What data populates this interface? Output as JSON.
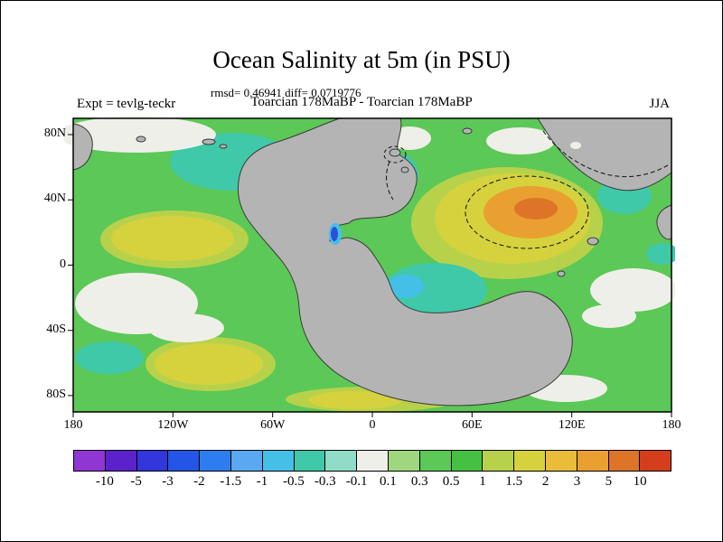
{
  "title": "Ocean Salinity at 5m (in PSU)",
  "stats_line": "rmsd= 0.46941 diff= 0.0719776",
  "header": {
    "left": "Expt = tevlg-teckr",
    "center": "Toarcian 178MaBP - Toarcian 178MaBP",
    "right": "JJA"
  },
  "axes": {
    "lat_labels": [
      "80N",
      "40N",
      "0",
      "40S",
      "80S"
    ],
    "lon_labels": [
      "180",
      "120W",
      "60W",
      "0",
      "60E",
      "120E",
      "180"
    ]
  },
  "colorbar": {
    "levels": [
      "-10",
      "-5",
      "-3",
      "-2",
      "-1.5",
      "-1",
      "-0.5",
      "-0.3",
      "-0.1",
      "0.1",
      "0.3",
      "0.5",
      "1",
      "1.5",
      "2",
      "3",
      "5",
      "10"
    ],
    "colors": [
      "#9036d4",
      "#5b22cc",
      "#3137dc",
      "#2355e6",
      "#2d7df0",
      "#5aa8f2",
      "#44c0e8",
      "#3fc9a8",
      "#90dcc6",
      "#efefe9",
      "#9ed77e",
      "#5cc857",
      "#45c043",
      "#b7d24a",
      "#d5d23e",
      "#e9bc3a",
      "#e9a030",
      "#de7428",
      "#d53d1c"
    ]
  },
  "map_colors": {
    "ocean": "#5cc857",
    "land": "#b4b4b4",
    "coastline": "#3a3a3a",
    "contour": "#111111",
    "teal": "#3fc9a8",
    "cyan": "#44c0e8",
    "white_zone": "#efefe9",
    "yellow_green": "#b7d24a",
    "yellow": "#d5d23e",
    "orange": "#e9a030",
    "deep_orange": "#de7428",
    "blue": "#2d50d8",
    "pale_teal": "#90dcc6"
  },
  "chart_data": {
    "type": "heatmap",
    "title": "Ocean Salinity at 5m (in PSU)",
    "subtitle": "Toarcian 178MaBP - Toarcian 178MaBP",
    "stats_text": "rmsd= 0.46941 diff= 0.0719776",
    "rmsd": 0.46941,
    "diff": 0.0719776,
    "experiment": "tevlg-teckr",
    "season": "JJA",
    "units": "PSU",
    "depth": "5m",
    "axis": {
      "lon_ticks": [
        "180",
        "120W",
        "60W",
        "0",
        "60E",
        "120E",
        "180"
      ],
      "lat_ticks": [
        "80N",
        "40N",
        "0",
        "40S",
        "80S"
      ],
      "lon_range_deg": [
        -180,
        180
      ],
      "lat_range_deg": [
        -90,
        90
      ]
    },
    "contour_levels_psu": [
      -10,
      -5,
      -3,
      -2,
      -1.5,
      -1,
      -0.5,
      -0.3,
      -0.1,
      0.1,
      0.3,
      0.5,
      1,
      1.5,
      2,
      3,
      5,
      10
    ],
    "palette": [
      "#9036d4",
      "#5b22cc",
      "#3137dc",
      "#2355e6",
      "#2d7df0",
      "#5aa8f2",
      "#44c0e8",
      "#3fc9a8",
      "#90dcc6",
      "#efefe9",
      "#9ed77e",
      "#5cc857",
      "#45c043",
      "#b7d24a",
      "#d5d23e",
      "#e9bc3a",
      "#e9a030",
      "#de7428",
      "#d53d1c"
    ],
    "field_summary": {
      "dominant_range_psu": [
        0.1,
        0.5
      ],
      "positive_anomaly_regions": "yellow-orange patch reaching 2-3 PSU in eastern Tethys near 30-50N 40-100E; yellow patches ~1-1.5 PSU in western mid-latitude and southwestern ocean and along 80S",
      "negative_anomaly_regions": "teal patches -0.5 to -0.1 PSU in northwest ocean and western Tethys seaway; small spot below -2 PSU in narrow inlet near 40N on west coast of Pangaea",
      "near_zero_regions": "white patches with |diff| < 0.1 PSU at high northern latitudes, mid-ocean west and east sides"
    }
  }
}
